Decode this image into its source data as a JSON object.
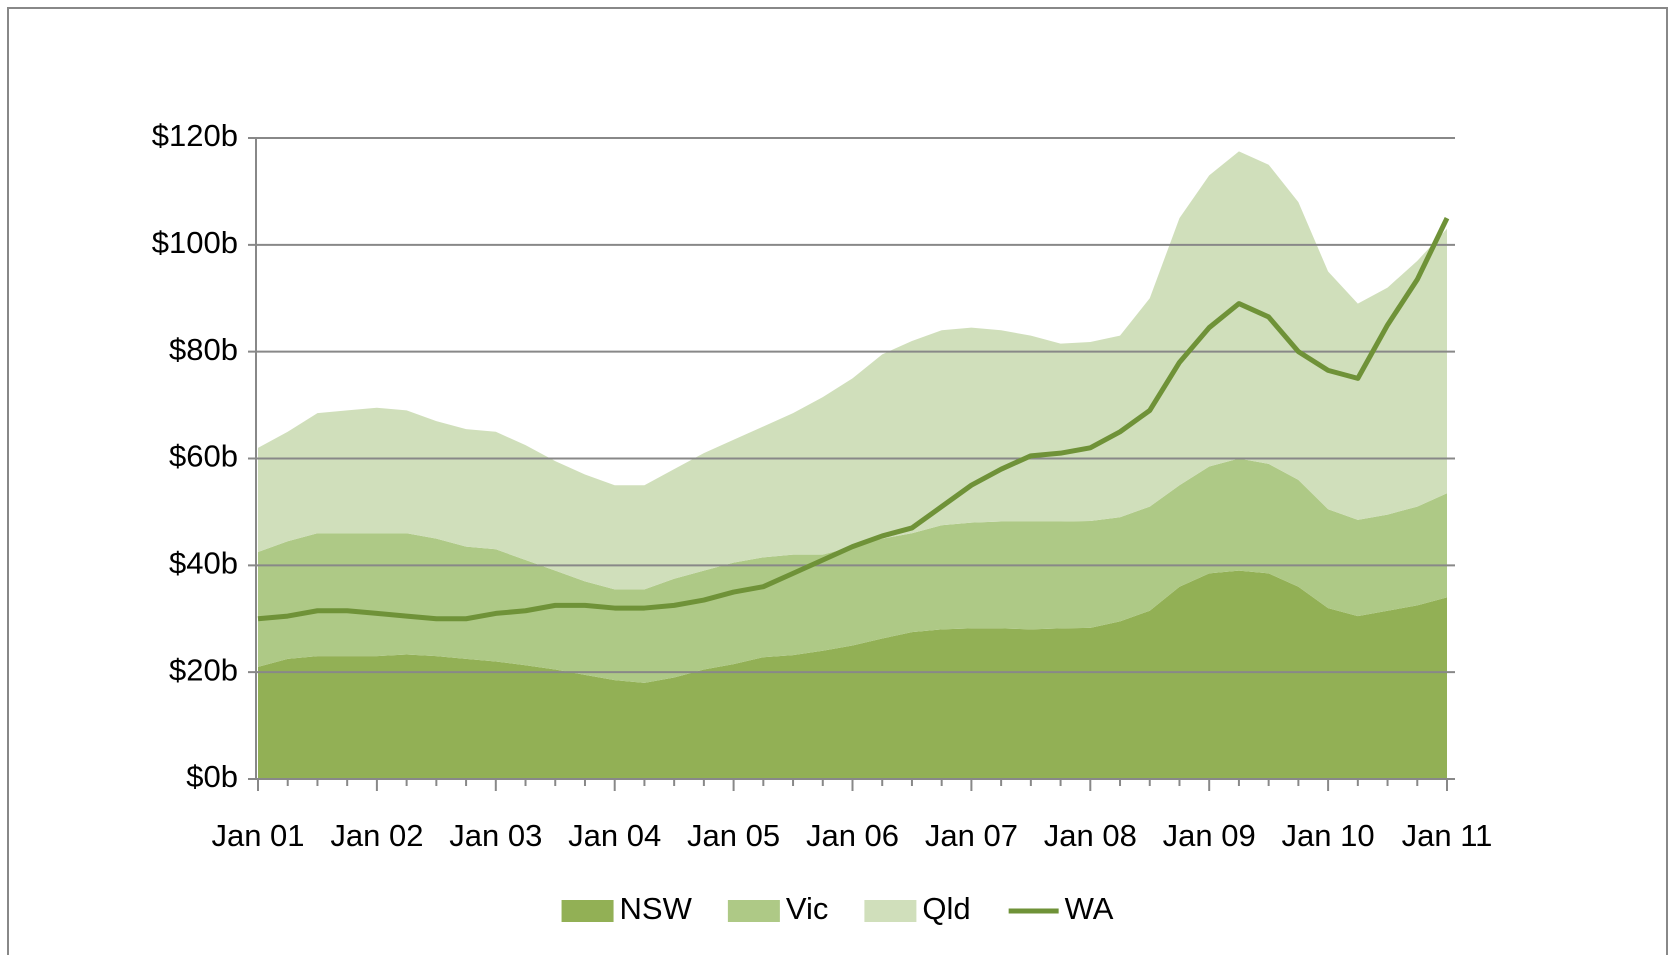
{
  "chart_data": {
    "type": "area",
    "stacked": true,
    "grid": true,
    "categories": [
      "Jan 01",
      null,
      null,
      null,
      "Jan 02",
      null,
      null,
      null,
      "Jan 03",
      null,
      null,
      null,
      "Jan 04",
      null,
      null,
      null,
      "Jan 05",
      null,
      null,
      null,
      "Jan 06",
      null,
      null,
      null,
      "Jan 07",
      null,
      null,
      null,
      "Jan 08",
      null,
      null,
      null,
      "Jan 09",
      null,
      null,
      null,
      "Jan 10",
      null,
      null,
      null,
      "Jan 11"
    ],
    "ylim": [
      0,
      120
    ],
    "yticks": [
      {
        "value": 0,
        "label": "$0b"
      },
      {
        "value": 20,
        "label": "$20b"
      },
      {
        "value": 40,
        "label": "$40b"
      },
      {
        "value": 60,
        "label": "$60b"
      },
      {
        "value": 80,
        "label": "$80b"
      },
      {
        "value": 100,
        "label": "$100b"
      },
      {
        "value": 120,
        "label": "$120b"
      }
    ],
    "series": [
      {
        "name": "NSW",
        "color": "#92b055",
        "values": [
          21,
          22.5,
          23,
          23,
          23,
          23.3,
          23,
          22.5,
          22,
          21.3,
          20.5,
          19.5,
          18.5,
          18,
          19,
          20.5,
          21.5,
          22.8,
          23.2,
          24,
          25,
          26.3,
          27.5,
          28,
          28.2,
          28.2,
          28,
          28.2,
          28.3,
          29.5,
          31.5,
          36,
          38.5,
          39,
          38.5,
          36,
          32,
          30.5,
          31.5,
          32.5,
          34
        ]
      },
      {
        "name": "Vic",
        "color": "#aec986",
        "values": [
          21.5,
          22,
          23,
          23,
          23,
          22.7,
          22,
          21,
          21,
          19.7,
          18.5,
          17.5,
          17,
          17.5,
          18.5,
          18.5,
          19,
          18.7,
          18.8,
          18,
          18.5,
          18.7,
          18.5,
          19.5,
          19.8,
          20,
          20.2,
          20,
          20,
          19.5,
          19.5,
          19,
          20,
          21,
          20.5,
          20,
          18.5,
          18,
          18,
          18.5,
          19.5
        ]
      },
      {
        "name": "Qld",
        "color": "#d0dfbb",
        "values": [
          19.5,
          20.5,
          22.5,
          23,
          23.5,
          23,
          22,
          22,
          22,
          21.5,
          20.5,
          20,
          19.5,
          19.5,
          20.5,
          22,
          23,
          24.5,
          26.5,
          29.5,
          31.5,
          34.5,
          36,
          36.5,
          36.5,
          35.8,
          34.8,
          33.3,
          33.5,
          34,
          39,
          50,
          54.5,
          57.5,
          56,
          52,
          44.5,
          40.5,
          42.5,
          46,
          49.5
        ]
      },
      {
        "name": "WA",
        "color": "#6f9238",
        "type": "line",
        "values": [
          30,
          30.5,
          31.5,
          31.5,
          31,
          30.5,
          30,
          30,
          31,
          31.5,
          32.5,
          32.5,
          32,
          32,
          32.5,
          33.5,
          35,
          36,
          38.5,
          41,
          43.5,
          45.5,
          47,
          51,
          55,
          58,
          60.5,
          61,
          62,
          65,
          69,
          78,
          84.5,
          89,
          86.5,
          80,
          76.5,
          75,
          85,
          93.5,
          105
        ]
      }
    ]
  }
}
